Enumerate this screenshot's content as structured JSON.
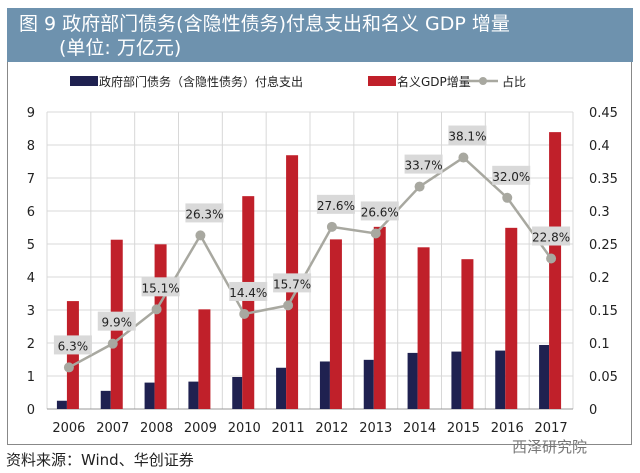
{
  "title": {
    "line1": "图 9  政府部门债务(含隐性债务)付息支出和名义 GDP 增量",
    "line2": "(单位: 万亿元)"
  },
  "source": "资料来源：Wind、华创证券",
  "watermark": "西泽研究院",
  "chart_data": {
    "type": "bar",
    "categories": [
      "2006",
      "2007",
      "2008",
      "2009",
      "2010",
      "2011",
      "2012",
      "2013",
      "2014",
      "2015",
      "2016",
      "2017"
    ],
    "series": [
      {
        "name": "政府部门债务（含隐性债务）付息支出",
        "type": "bar",
        "axis": "left",
        "color": "#1f2150",
        "values": [
          0.25,
          0.55,
          0.8,
          0.83,
          0.97,
          1.25,
          1.44,
          1.49,
          1.7,
          1.74,
          1.77,
          1.94
        ]
      },
      {
        "name": "名义GDP增量",
        "type": "bar",
        "axis": "left",
        "color": "#c0202a",
        "values": [
          3.27,
          5.13,
          4.99,
          3.02,
          6.45,
          7.69,
          5.14,
          5.52,
          4.9,
          4.54,
          5.49,
          8.39
        ]
      },
      {
        "name": "占比",
        "type": "line",
        "axis": "right",
        "color": "#a8a8a0",
        "values": [
          0.063,
          0.099,
          0.151,
          0.263,
          0.144,
          0.157,
          0.276,
          0.266,
          0.337,
          0.381,
          0.32,
          0.228
        ],
        "labels": [
          "6.3%",
          "9.9%",
          "15.1%",
          "26.3%",
          "14.4%",
          "15.7%",
          "27.6%",
          "26.6%",
          "33.7%",
          "38.1%",
          "32.0%",
          "22.8%"
        ]
      }
    ],
    "left_axis": {
      "ylim": [
        0,
        9
      ],
      "ticks": [
        "0",
        "1",
        "2",
        "3",
        "4",
        "5",
        "6",
        "7",
        "8",
        "9"
      ]
    },
    "right_axis": {
      "ylim": [
        0,
        0.45
      ],
      "ticks": [
        "0",
        "0.05",
        "0.1",
        "0.15",
        "0.2",
        "0.25",
        "0.3",
        "0.35",
        "0.4",
        "0.45"
      ]
    },
    "grid": true,
    "legend": "top"
  }
}
